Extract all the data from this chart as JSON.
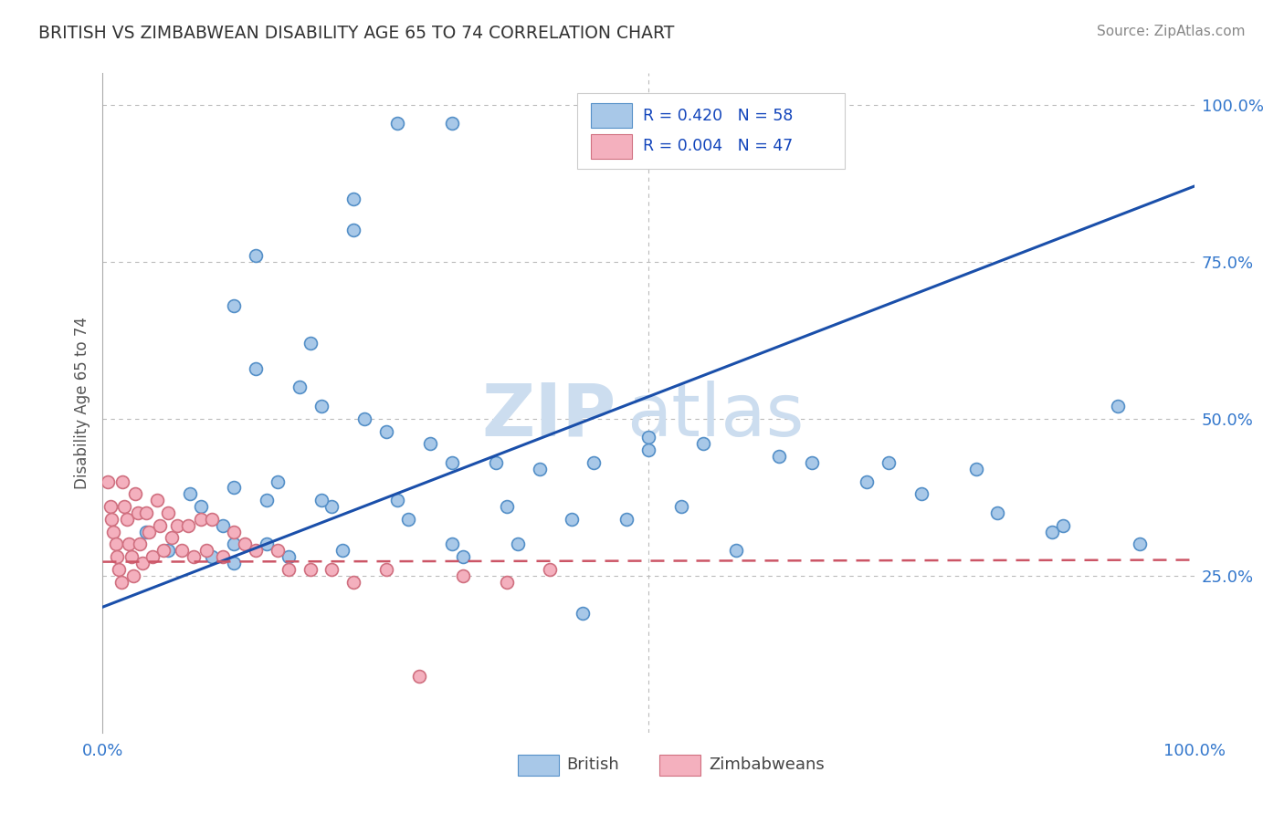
{
  "title": "BRITISH VS ZIMBABWEAN DISABILITY AGE 65 TO 74 CORRELATION CHART",
  "source_text": "Source: ZipAtlas.com",
  "ylabel": "Disability Age 65 to 74",
  "xlim": [
    0.0,
    1.0
  ],
  "ylim": [
    0.0,
    1.05
  ],
  "ytick_labels": [
    "25.0%",
    "50.0%",
    "75.0%",
    "100.0%"
  ],
  "ytick_positions": [
    0.25,
    0.5,
    0.75,
    1.0
  ],
  "british_r": "0.420",
  "british_n": "58",
  "zimbabwean_r": "0.004",
  "zimbabwean_n": "47",
  "british_color": "#a8c8e8",
  "british_edge_color": "#5590c8",
  "zimbabwean_color": "#f4b0be",
  "zimbabwean_edge_color": "#d07080",
  "blue_line_color": "#1a4faa",
  "pink_line_color": "#cc5566",
  "grid_color": "#bbbbbb",
  "watermark_color": "#ccddef",
  "legend_r_color": "#1144bb",
  "title_color": "#333333",
  "axis_label_color": "#3377cc",
  "british_scatter_x": [
    0.27,
    0.32,
    0.23,
    0.23,
    0.14,
    0.12,
    0.19,
    0.14,
    0.18,
    0.2,
    0.24,
    0.26,
    0.3,
    0.32,
    0.36,
    0.4,
    0.45,
    0.5,
    0.55,
    0.62,
    0.65,
    0.72,
    0.8,
    0.87,
    0.93,
    0.08,
    0.09,
    0.11,
    0.12,
    0.15,
    0.21,
    0.28,
    0.32,
    0.37,
    0.43,
    0.48,
    0.53,
    0.58,
    0.12,
    0.16,
    0.7,
    0.75,
    0.82,
    0.88,
    0.95,
    0.04,
    0.06,
    0.1,
    0.12,
    0.15,
    0.17,
    0.2,
    0.22,
    0.27,
    0.33,
    0.38,
    0.44,
    0.5
  ],
  "british_scatter_y": [
    0.97,
    0.97,
    0.85,
    0.8,
    0.76,
    0.68,
    0.62,
    0.58,
    0.55,
    0.52,
    0.5,
    0.48,
    0.46,
    0.43,
    0.43,
    0.42,
    0.43,
    0.47,
    0.46,
    0.44,
    0.43,
    0.43,
    0.42,
    0.32,
    0.52,
    0.38,
    0.36,
    0.33,
    0.3,
    0.37,
    0.36,
    0.34,
    0.3,
    0.36,
    0.34,
    0.34,
    0.36,
    0.29,
    0.39,
    0.4,
    0.4,
    0.38,
    0.35,
    0.33,
    0.3,
    0.32,
    0.29,
    0.28,
    0.27,
    0.3,
    0.28,
    0.37,
    0.29,
    0.37,
    0.28,
    0.3,
    0.19,
    0.45
  ],
  "zimbabwean_scatter_x": [
    0.005,
    0.007,
    0.008,
    0.01,
    0.012,
    0.013,
    0.015,
    0.017,
    0.018,
    0.02,
    0.022,
    0.024,
    0.026,
    0.028,
    0.03,
    0.032,
    0.034,
    0.036,
    0.04,
    0.042,
    0.046,
    0.05,
    0.052,
    0.056,
    0.06,
    0.063,
    0.068,
    0.072,
    0.078,
    0.083,
    0.09,
    0.095,
    0.1,
    0.11,
    0.12,
    0.13,
    0.14,
    0.16,
    0.17,
    0.19,
    0.21,
    0.23,
    0.26,
    0.29,
    0.33,
    0.37,
    0.41
  ],
  "zimbabwean_scatter_y": [
    0.4,
    0.36,
    0.34,
    0.32,
    0.3,
    0.28,
    0.26,
    0.24,
    0.4,
    0.36,
    0.34,
    0.3,
    0.28,
    0.25,
    0.38,
    0.35,
    0.3,
    0.27,
    0.35,
    0.32,
    0.28,
    0.37,
    0.33,
    0.29,
    0.35,
    0.31,
    0.33,
    0.29,
    0.33,
    0.28,
    0.34,
    0.29,
    0.34,
    0.28,
    0.32,
    0.3,
    0.29,
    0.29,
    0.26,
    0.26,
    0.26,
    0.24,
    0.26,
    0.09,
    0.25,
    0.24,
    0.26
  ],
  "british_line_x": [
    0.0,
    1.0
  ],
  "british_line_y": [
    0.2,
    0.87
  ],
  "zimbabwean_line_x": [
    0.0,
    1.0
  ],
  "zimbabwean_line_y": [
    0.272,
    0.275
  ],
  "marker_size": 100,
  "marker_linewidth": 1.2,
  "figsize": [
    14.06,
    8.92
  ],
  "dpi": 100
}
